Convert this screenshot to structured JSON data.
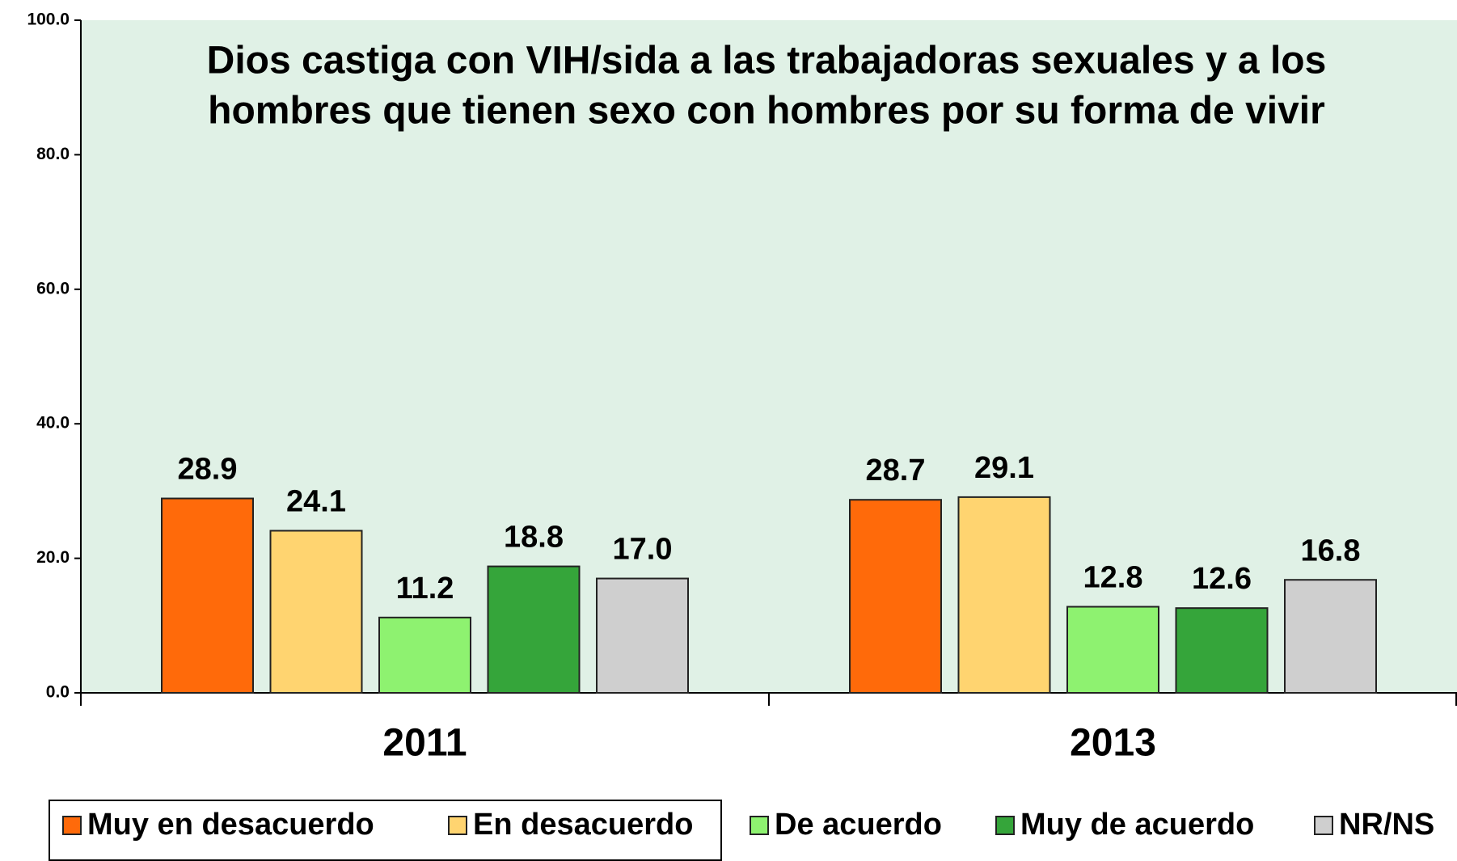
{
  "chart_data": {
    "type": "bar",
    "title": [
      "Dios castiga con VIH/sida a las trabajadoras sexuales y a los",
      "hombres que tienen sexo con hombres por su forma de vivir"
    ],
    "categories": [
      "2011",
      "2013"
    ],
    "series": [
      {
        "name": "Muy en desacuerdo",
        "color": "#ff6a0a",
        "values": [
          28.9,
          28.7
        ],
        "value_labels": [
          "28.9",
          "28.7"
        ]
      },
      {
        "name": "En desacuerdo",
        "color": "#ffd470",
        "values": [
          24.1,
          29.1
        ],
        "value_labels": [
          "24.1",
          "29.1"
        ]
      },
      {
        "name": "De acuerdo",
        "color": "#8ef270",
        "values": [
          11.2,
          12.8
        ],
        "value_labels": [
          "11.2",
          "12.8"
        ]
      },
      {
        "name": "Muy de acuerdo",
        "color": "#35a53a",
        "values": [
          18.8,
          12.6
        ],
        "value_labels": [
          "18.8",
          "12.6"
        ]
      },
      {
        "name": "NR/NS",
        "color": "#cfcfcf",
        "values": [
          17.0,
          16.8
        ],
        "value_labels": [
          "17.0",
          "16.8"
        ]
      }
    ],
    "ylim": [
      0,
      100
    ],
    "yticks": [
      {
        "value": 0,
        "label": "0.0"
      },
      {
        "value": 20,
        "label": "20.0"
      },
      {
        "value": 40,
        "label": "40.0"
      },
      {
        "value": 60,
        "label": "60.0"
      },
      {
        "value": 80,
        "label": "80.0"
      },
      {
        "value": 100,
        "label": "100.0"
      }
    ],
    "legend": "bottom"
  }
}
